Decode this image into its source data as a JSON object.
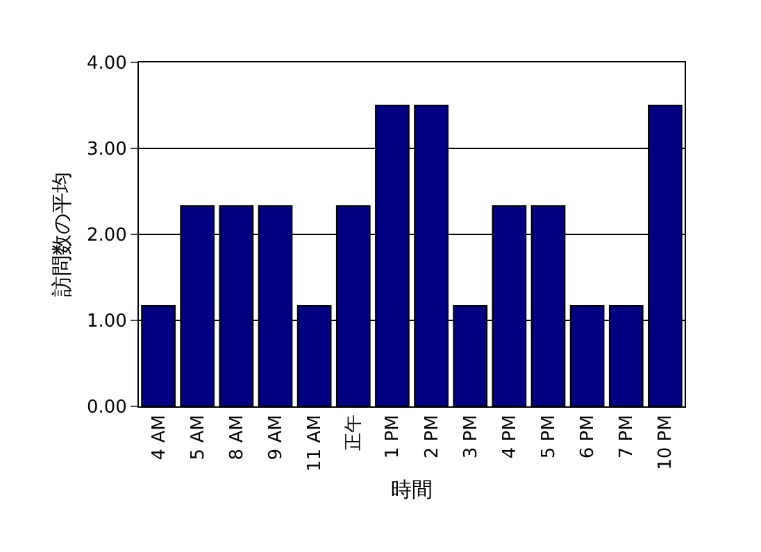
{
  "chart_data": {
    "type": "bar",
    "xlabel": "時間",
    "ylabel": "訪問数の平均",
    "categories": [
      "4 AM",
      "5 AM",
      "8 AM",
      "9 AM",
      "11 AM",
      "正午",
      "1 PM",
      "2 PM",
      "3 PM",
      "4 PM",
      "5 PM",
      "6 PM",
      "7 PM",
      "10 PM"
    ],
    "values": [
      1.17,
      2.33,
      2.33,
      2.33,
      1.17,
      2.33,
      3.5,
      3.5,
      1.17,
      2.33,
      2.33,
      1.17,
      1.17,
      3.5
    ],
    "color": "#000080",
    "ylim": [
      0,
      4
    ],
    "yticks": [
      {
        "value": 0,
        "label": "0.00"
      },
      {
        "value": 1,
        "label": "1.00"
      },
      {
        "value": 2,
        "label": "2.00"
      },
      {
        "value": 3,
        "label": "3.00"
      },
      {
        "value": 4,
        "label": "4.00"
      }
    ],
    "grid": "y",
    "legend": false
  }
}
